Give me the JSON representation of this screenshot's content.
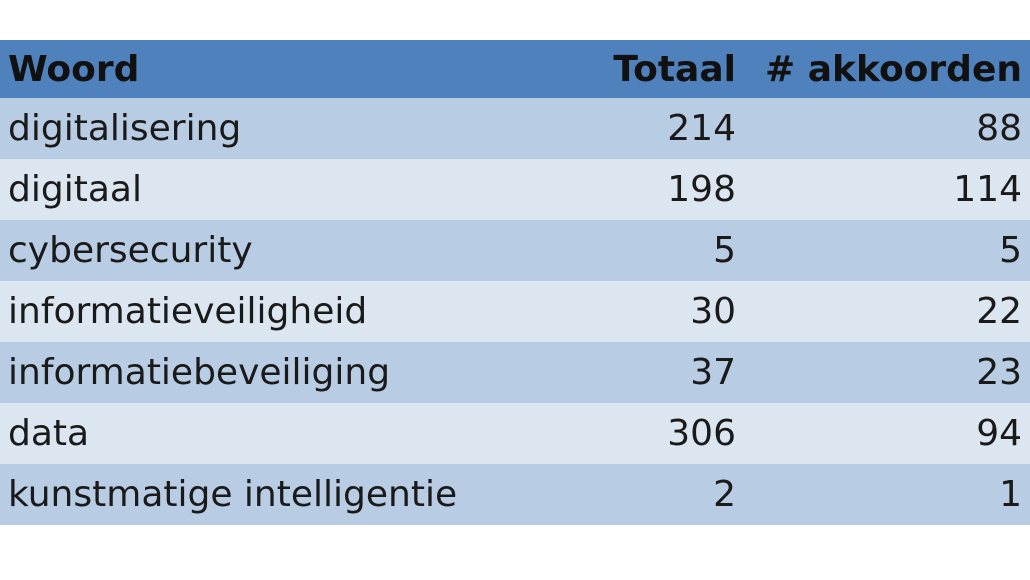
{
  "table": {
    "header": [
      "Woord",
      "Totaal",
      "# akkoorden"
    ],
    "rows": [
      [
        "digitalisering",
        214,
        88
      ],
      [
        "digitaal",
        198,
        114
      ],
      [
        "cybersecurity",
        5,
        5
      ],
      [
        "informatieveiligheid",
        30,
        22
      ],
      [
        "informatiebeveiliging",
        37,
        23
      ],
      [
        "data",
        306,
        94
      ],
      [
        "kunstmatige intelligentie",
        2,
        1
      ]
    ]
  }
}
